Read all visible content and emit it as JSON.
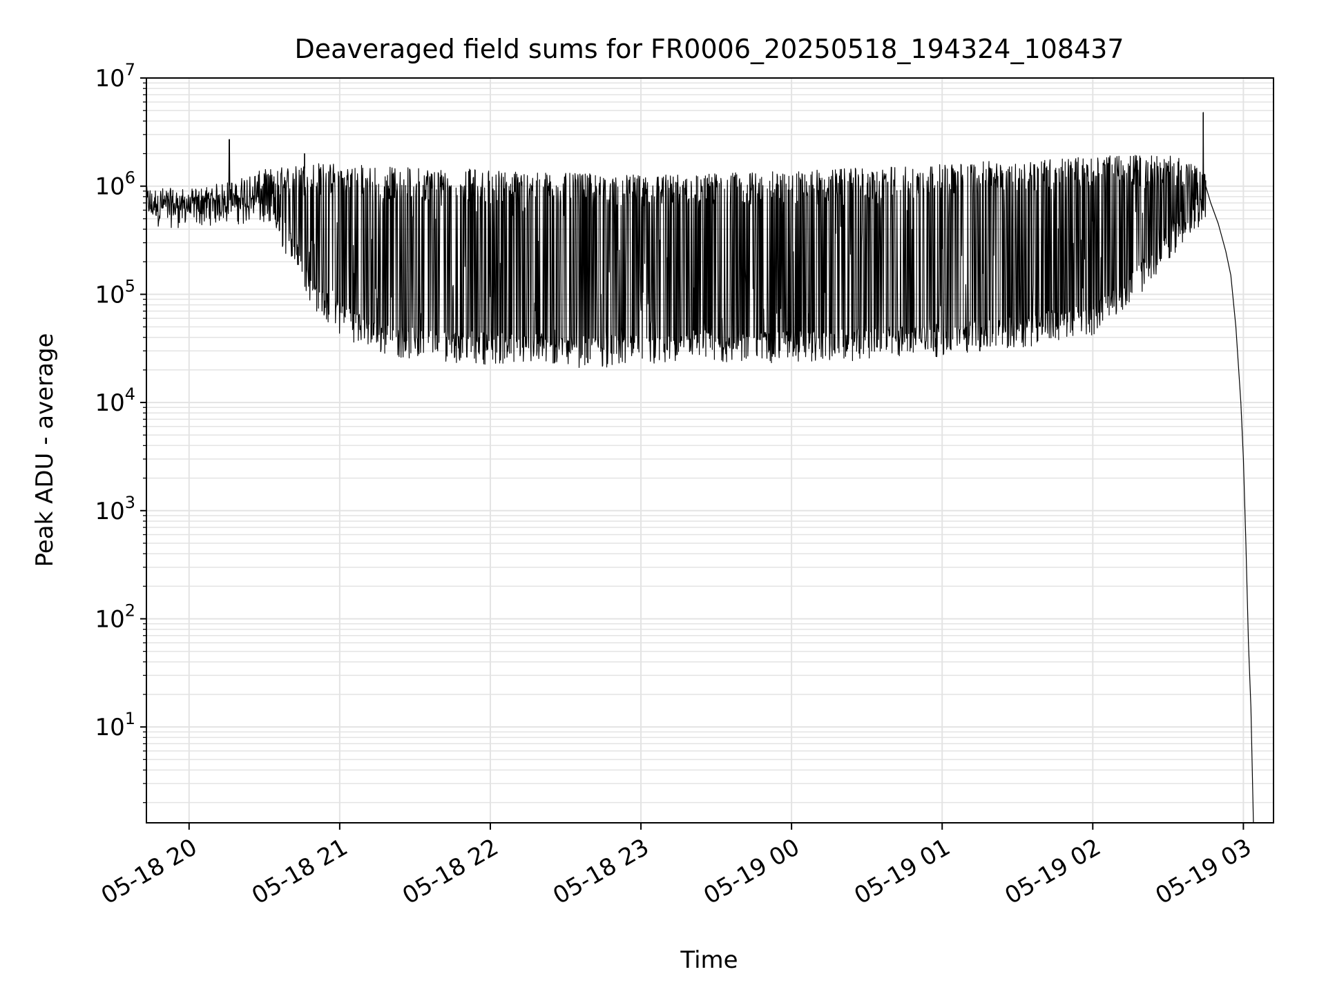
{
  "chart_data": {
    "type": "line",
    "title": "Deaveraged field sums for FR0006_20250518_194324_108437",
    "xlabel": "Time",
    "ylabel": "Peak ADU - average",
    "yscale": "log",
    "grid": true,
    "legend": "none",
    "colors": {
      "line": "#000000",
      "grid": "#e3e3e3",
      "axes": "#000000"
    },
    "xlim": [
      "2025-05-18 19:43",
      "2025-05-19 03:12"
    ],
    "ylim": [
      1.3,
      10000000
    ],
    "x_ticks": [
      {
        "t": "2025-05-18 20:00",
        "label": "05-18 20"
      },
      {
        "t": "2025-05-18 21:00",
        "label": "05-18 21"
      },
      {
        "t": "2025-05-18 22:00",
        "label": "05-18 22"
      },
      {
        "t": "2025-05-18 23:00",
        "label": "05-18 23"
      },
      {
        "t": "2025-05-19 00:00",
        "label": "05-19 00"
      },
      {
        "t": "2025-05-19 01:00",
        "label": "05-19 01"
      },
      {
        "t": "2025-05-19 02:00",
        "label": "05-19 02"
      },
      {
        "t": "2025-05-19 03:00",
        "label": "05-19 03"
      }
    ],
    "y_ticks": [
      {
        "v": 10,
        "base": "10",
        "exp": "1"
      },
      {
        "v": 100,
        "base": "10",
        "exp": "2"
      },
      {
        "v": 1000,
        "base": "10",
        "exp": "3"
      },
      {
        "v": 10000,
        "base": "10",
        "exp": "4"
      },
      {
        "v": 100000,
        "base": "10",
        "exp": "5"
      },
      {
        "v": 1000000,
        "base": "10",
        "exp": "6"
      },
      {
        "v": 10000000,
        "base": "10",
        "exp": "7"
      }
    ],
    "series": [
      {
        "style": "dense-oscillating-line",
        "envelope": {
          "t": [
            "2025-05-18 19:43",
            "2025-05-18 20:00",
            "2025-05-18 20:15",
            "2025-05-18 20:30",
            "2025-05-18 20:40",
            "2025-05-18 20:50",
            "2025-05-18 21:00",
            "2025-05-18 21:15",
            "2025-05-18 21:30",
            "2025-05-18 22:00",
            "2025-05-18 22:30",
            "2025-05-18 23:00",
            "2025-05-18 23:30",
            "2025-05-19 00:00",
            "2025-05-19 00:30",
            "2025-05-19 01:00",
            "2025-05-19 01:30",
            "2025-05-19 02:00",
            "2025-05-19 02:20",
            "2025-05-19 02:35",
            "2025-05-19 02:45"
          ],
          "low": [
            600000,
            580000,
            650000,
            600000,
            300000,
            100000,
            60000,
            40000,
            35000,
            32000,
            30000,
            30000,
            32000,
            33000,
            35000,
            38000,
            45000,
            60000,
            150000,
            400000,
            600000
          ],
          "high": [
            900000,
            850000,
            1000000,
            1300000,
            1400000,
            1500000,
            1500000,
            1400000,
            1350000,
            1300000,
            1200000,
            1150000,
            1200000,
            1250000,
            1350000,
            1450000,
            1600000,
            1700000,
            1800000,
            1700000,
            1200000
          ]
        },
        "spikes": [
          {
            "t": "2025-05-18 20:16",
            "y": 2700000
          },
          {
            "t": "2025-05-18 20:46",
            "y": 2000000
          },
          {
            "t": "2025-05-19 02:44",
            "y": 4800000
          }
        ],
        "tail": {
          "t": [
            "2025-05-19 02:45",
            "2025-05-19 02:47",
            "2025-05-19 02:50",
            "2025-05-19 02:53",
            "2025-05-19 02:55",
            "2025-05-19 02:57",
            "2025-05-19 02:59",
            "2025-05-19 03:00",
            "2025-05-19 03:01",
            "2025-05-19 03:02",
            "2025-05-19 03:03",
            "2025-05-19 03:04"
          ],
          "y": [
            1000000,
            700000,
            450000,
            250000,
            150000,
            50000,
            10000,
            3000,
            500,
            60,
            15,
            1.3
          ]
        }
      }
    ]
  }
}
